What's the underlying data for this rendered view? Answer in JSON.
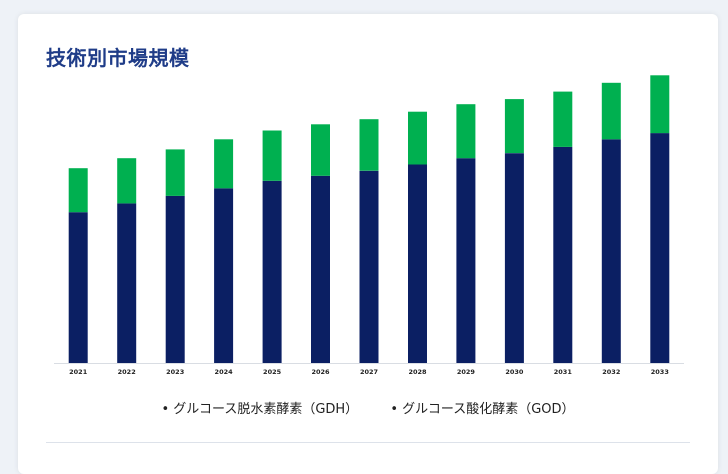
{
  "page": {
    "title": "技術別市場規模"
  },
  "legend": {
    "items": [
      "• グルコース脱水素酵素（GDH）",
      "• グルコース酸化酵素（GOD）"
    ]
  },
  "colors": {
    "gdh": "#0b1f63",
    "god": "#00b050",
    "title": "#1f3c88"
  },
  "chart_data": {
    "type": "bar",
    "stacked": true,
    "categories": [
      "2021",
      "2022",
      "2023",
      "2024",
      "2025",
      "2026",
      "2027",
      "2028",
      "2029",
      "2030",
      "2031",
      "2032",
      "2033"
    ],
    "series": [
      {
        "name": "グルコース脱水素酵素（GDH）",
        "values": [
          120,
          127,
          133,
          139,
          145,
          149,
          153,
          158,
          163,
          167,
          172,
          178,
          183
        ]
      },
      {
        "name": "グルコース酸化酵素（GOD）",
        "values": [
          35,
          36,
          37,
          39,
          40,
          41,
          41,
          42,
          43,
          43,
          44,
          45,
          46
        ]
      }
    ],
    "ylim": [
      0,
      230
    ],
    "grid": false,
    "y_axis_visible": false,
    "legend_position": "bottom"
  }
}
